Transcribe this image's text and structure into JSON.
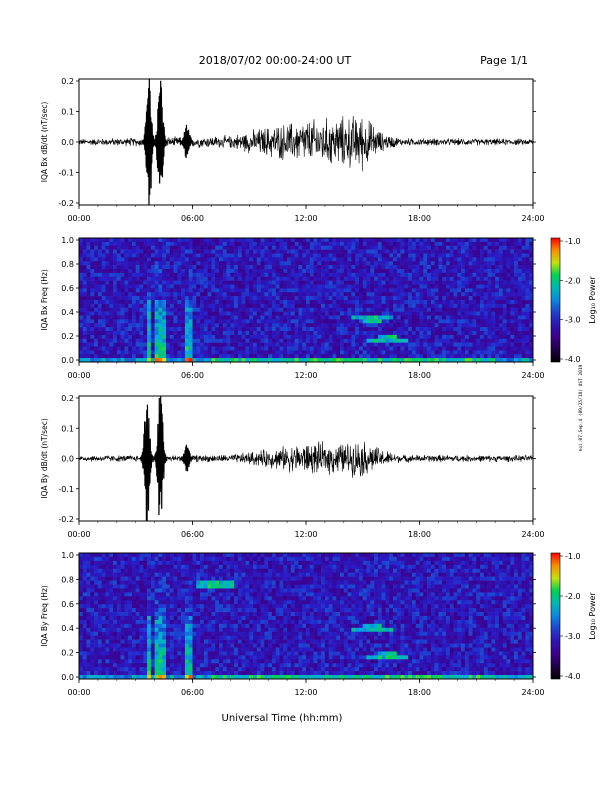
{
  "header": {
    "title": "2018/07/02  00:00-24:00 UT",
    "page": "Page 1/1"
  },
  "footer": {
    "xlabel": "Universal Time (hh:mm)"
  },
  "side_note": "noi.07.Sep.4 (09/25/18) UST 2019",
  "chart_data": [
    {
      "type": "line",
      "ylabel": "IQA Bx dB/dt (nT/sec)",
      "xlim": [
        0,
        24
      ],
      "ylim": [
        -0.2,
        0.2
      ],
      "yticks": [
        "0.2",
        "0.1",
        "0.0",
        "-0.1",
        "-0.2"
      ],
      "xticks": [
        "00:00",
        "06:00",
        "12:00",
        "18:00",
        "24:00"
      ],
      "bursts": [
        {
          "t": 3.7,
          "amp": 0.24
        },
        {
          "t": 4.3,
          "amp": 0.24
        },
        {
          "t": 5.7,
          "amp": 0.06
        }
      ],
      "activity_envelope": {
        "x": [
          0,
          8,
          10,
          12,
          14,
          15,
          16,
          17,
          24
        ],
        "y": [
          0.01,
          0.02,
          0.05,
          0.07,
          0.08,
          0.09,
          0.03,
          0.012,
          0.01
        ]
      }
    },
    {
      "type": "heatmap",
      "ylabel": "IQA Bx Freq (Hz)",
      "xlim": [
        0,
        24
      ],
      "ylim": [
        0,
        1.0
      ],
      "yticks": [
        "1.0",
        "0.8",
        "0.6",
        "0.4",
        "0.2",
        "0.0"
      ],
      "xticks": [
        "00:00",
        "06:00",
        "12:00",
        "18:00",
        "24:00"
      ],
      "colorbar": {
        "label": "Log₁₀ Power",
        "ticks": [
          "-1.0",
          "-2.0",
          "-3.0",
          "-4.0"
        ],
        "range": [
          -4.0,
          -1.0
        ]
      },
      "features": [
        {
          "t": 16.3,
          "f": 0.18,
          "desc": "band"
        },
        {
          "t": 15.5,
          "f": 0.35,
          "desc": "streak"
        }
      ]
    },
    {
      "type": "line",
      "ylabel": "IQA By dB/dt (nT/sec)",
      "xlim": [
        0,
        24
      ],
      "ylim": [
        -0.2,
        0.2
      ],
      "yticks": [
        "0.2",
        "0.1",
        "0.0",
        "-0.1",
        "-0.2"
      ],
      "xticks": [
        "00:00",
        "06:00",
        "12:00",
        "18:00",
        "24:00"
      ],
      "bursts": [
        {
          "t": 3.6,
          "amp": 0.24
        },
        {
          "t": 4.3,
          "amp": 0.24
        },
        {
          "t": 5.7,
          "amp": 0.05
        }
      ],
      "activity_envelope": {
        "x": [
          0,
          8,
          10,
          12,
          14,
          15,
          16,
          17,
          24
        ],
        "y": [
          0.01,
          0.012,
          0.03,
          0.05,
          0.05,
          0.06,
          0.03,
          0.012,
          0.01
        ]
      }
    },
    {
      "type": "heatmap",
      "ylabel": "IQA By Freq (Hz)",
      "xlim": [
        0,
        24
      ],
      "ylim": [
        0,
        1.0
      ],
      "yticks": [
        "1.0",
        "0.8",
        "0.6",
        "0.4",
        "0.2",
        "0.0"
      ],
      "xticks": [
        "00:00",
        "06:00",
        "12:00",
        "18:00",
        "24:00"
      ],
      "colorbar": {
        "label": "Log₁₀ Power",
        "ticks": [
          "-1.0",
          "-2.0",
          "-3.0",
          "-4.0"
        ],
        "range": [
          -4.0,
          -1.0
        ]
      },
      "features": [
        {
          "t": 16.3,
          "f": 0.18,
          "desc": "band"
        },
        {
          "t": 15.5,
          "f": 0.4,
          "desc": "streak"
        },
        {
          "t": 7.2,
          "f": 0.75,
          "desc": "streak"
        }
      ]
    }
  ]
}
